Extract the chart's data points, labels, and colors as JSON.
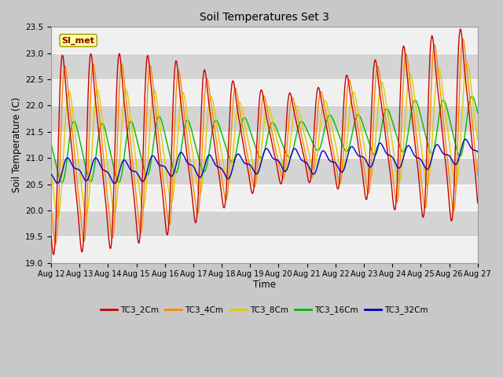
{
  "title": "Soil Temperatures Set 3",
  "ylabel": "Soil Temperature (C)",
  "xlabel": "Time",
  "ylim": [
    19.0,
    23.5
  ],
  "yticks": [
    19.0,
    19.5,
    20.0,
    20.5,
    21.0,
    21.5,
    22.0,
    22.5,
    23.0,
    23.5
  ],
  "x_labels": [
    "Aug 12",
    "Aug 13",
    "Aug 14",
    "Aug 15",
    "Aug 16",
    "Aug 17",
    "Aug 18",
    "Aug 19",
    "Aug 20",
    "Aug 21",
    "Aug 22",
    "Aug 23",
    "Aug 24",
    "Aug 25",
    "Aug 26",
    "Aug 27"
  ],
  "colors": {
    "TC3_2Cm": "#cc0000",
    "TC3_4Cm": "#ff8800",
    "TC3_8Cm": "#ddcc00",
    "TC3_16Cm": "#00bb00",
    "TC3_32Cm": "#0000cc"
  },
  "legend_labels": [
    "TC3_2Cm",
    "TC3_4Cm",
    "TC3_8Cm",
    "TC3_16Cm",
    "TC3_32Cm"
  ],
  "SI_met_label": "SI_met",
  "bg_color": "#dcdcdc",
  "fig_bg": "#c8c8c8"
}
